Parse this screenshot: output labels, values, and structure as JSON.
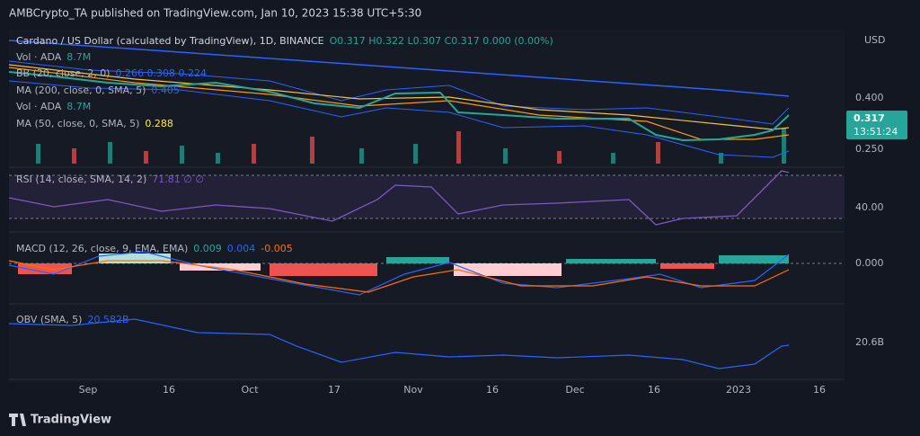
{
  "header": {
    "title": "AMBCrypto_TA published on TradingView.com, Jan 10, 2023 15:38 UTC+5:30"
  },
  "main": {
    "symbol": "Cardano / US Dollar (calculated by TradingView), 1D, BINANCE",
    "ohlc": "O0.317 H0.322 L0.307 C0.317 0.000 (0.00%)",
    "legend": [
      {
        "name": "Vol · ADA",
        "value": "8.7M"
      },
      {
        "name": "BB (20, close, 2, 0)",
        "value": "0.266 0.308 0.224"
      },
      {
        "name": "MA (200, close, 0, SMA, 5)",
        "value": "0.405"
      },
      {
        "name": "Vol · ADA",
        "value": "8.7M"
      },
      {
        "name": "MA (50, close, 0, SMA, 5)",
        "value": "0.288"
      }
    ],
    "currency": "USD",
    "axis": [
      "0.400",
      "0.250"
    ],
    "last_price": "0.317",
    "countdown": "13:51:24"
  },
  "rsi": {
    "label": "RSI (14, close, SMA, 14, 2)",
    "value": "71.81 ∅ ∅",
    "axis": "40.00"
  },
  "macd": {
    "label": "MACD (12, 26, close, 9, EMA, EMA)",
    "values": [
      "0.009",
      "0.004",
      "-0.005"
    ],
    "axis": "0.000"
  },
  "obv": {
    "label": "OBV (SMA, 5)",
    "value": "20.582B",
    "axis": "20.6B"
  },
  "time_axis": [
    "Sep",
    "16",
    "Oct",
    "17",
    "Nov",
    "16",
    "Dec",
    "16",
    "2023",
    "16"
  ],
  "footer": {
    "brand": "TradingView"
  }
}
